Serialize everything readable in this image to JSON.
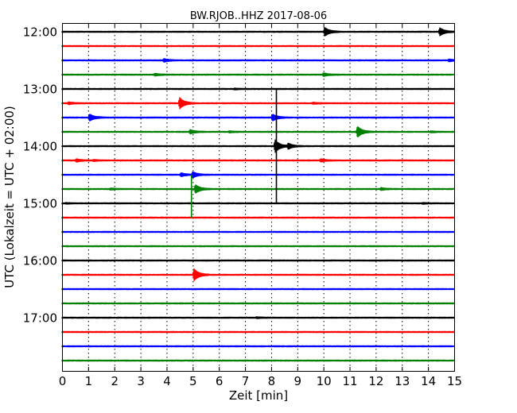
{
  "chart_data": {
    "type": "line",
    "title": "BW.RJOB..HHZ 2017-08-06",
    "xlabel": "Zeit  [min]",
    "ylabel": "UTC (Lokalzeit = UTC + 02:00)",
    "xlim": [
      0,
      15
    ],
    "x_ticks": [
      "0",
      "1",
      "2",
      "3",
      "4",
      "5",
      "6",
      "7",
      "8",
      "9",
      "10",
      "11",
      "12",
      "13",
      "14",
      "15"
    ],
    "y_ticks": [
      "12:00",
      "13:00",
      "14:00",
      "15:00",
      "16:00",
      "17:00"
    ],
    "grid": true,
    "trace_interval_min": 15,
    "colors": [
      "#000000",
      "#ff0000",
      "#0000ff",
      "#008000"
    ],
    "traces": [
      {
        "start": "12:00",
        "color": "#000000",
        "events": [
          {
            "x": 10.05,
            "amp": 1.0
          },
          {
            "x": 14.45,
            "amp": 0.9
          }
        ]
      },
      {
        "start": "12:15",
        "color": "#ff0000",
        "events": []
      },
      {
        "start": "12:30",
        "color": "#0000ff",
        "events": [
          {
            "x": 3.9,
            "amp": 0.35
          },
          {
            "x": 14.8,
            "amp": 0.25
          }
        ]
      },
      {
        "start": "12:45",
        "color": "#008000",
        "events": [
          {
            "x": 3.55,
            "amp": 0.25
          },
          {
            "x": 10.0,
            "amp": 0.35
          }
        ]
      },
      {
        "start": "13:00",
        "color": "#000000",
        "events": [
          {
            "x": 6.6,
            "amp": 0.12
          }
        ]
      },
      {
        "start": "13:15",
        "color": "#ff0000",
        "events": [
          {
            "x": 0.25,
            "amp": 0.25
          },
          {
            "x": 4.5,
            "amp": 1.3
          },
          {
            "x": 9.6,
            "amp": 0.15
          }
        ]
      },
      {
        "start": "13:30",
        "color": "#0000ff",
        "events": [
          {
            "x": 1.05,
            "amp": 0.8
          },
          {
            "x": 8.05,
            "amp": 0.8
          }
        ]
      },
      {
        "start": "13:45",
        "color": "#008000",
        "events": [
          {
            "x": 4.9,
            "amp": 0.45
          },
          {
            "x": 6.4,
            "amp": 0.15
          },
          {
            "x": 11.3,
            "amp": 1.3
          },
          {
            "x": 14.1,
            "amp": 0.15
          }
        ]
      },
      {
        "start": "14:00",
        "color": "#000000",
        "events": [
          {
            "x": 8.15,
            "amp": 1.5
          },
          {
            "x": 8.65,
            "amp": 0.65
          }
        ]
      },
      {
        "start": "14:15",
        "color": "#ff0000",
        "events": [
          {
            "x": 0.55,
            "amp": 0.3
          },
          {
            "x": 1.2,
            "amp": 0.15
          },
          {
            "x": 9.9,
            "amp": 0.3
          }
        ]
      },
      {
        "start": "14:30",
        "color": "#0000ff",
        "events": [
          {
            "x": 4.55,
            "amp": 0.4
          },
          {
            "x": 5.0,
            "amp": 0.65
          }
        ]
      },
      {
        "start": "14:45",
        "color": "#008000",
        "events": [
          {
            "x": 1.85,
            "amp": 0.15
          },
          {
            "x": 5.1,
            "amp": 1.0
          },
          {
            "x": 12.2,
            "amp": 0.25
          }
        ]
      },
      {
        "start": "15:00",
        "color": "#000000",
        "events": [
          {
            "x": 0.15,
            "amp": 0.1
          },
          {
            "x": 13.8,
            "amp": 0.1
          }
        ]
      },
      {
        "start": "15:15",
        "color": "#ff0000",
        "events": []
      },
      {
        "start": "15:30",
        "color": "#0000ff",
        "events": []
      },
      {
        "start": "15:45",
        "color": "#008000",
        "events": []
      },
      {
        "start": "16:00",
        "color": "#000000",
        "events": []
      },
      {
        "start": "16:15",
        "color": "#ff0000",
        "events": [
          {
            "x": 5.05,
            "amp": 1.4
          }
        ]
      },
      {
        "start": "16:30",
        "color": "#0000ff",
        "events": []
      },
      {
        "start": "16:45",
        "color": "#008000",
        "events": []
      },
      {
        "start": "17:00",
        "color": "#000000",
        "events": [
          {
            "x": 7.45,
            "amp": 0.12
          }
        ]
      },
      {
        "start": "17:15",
        "color": "#ff0000",
        "events": []
      },
      {
        "start": "17:30",
        "color": "#0000ff",
        "events": []
      },
      {
        "start": "17:45",
        "color": "#008000",
        "events": []
      }
    ],
    "vertical_spikes": [
      {
        "x": 8.2,
        "from": "13:00",
        "to": "15:00",
        "color": "#000000"
      },
      {
        "x": 4.95,
        "from": "14:30",
        "to": "15:15",
        "color": "#008000"
      }
    ]
  }
}
